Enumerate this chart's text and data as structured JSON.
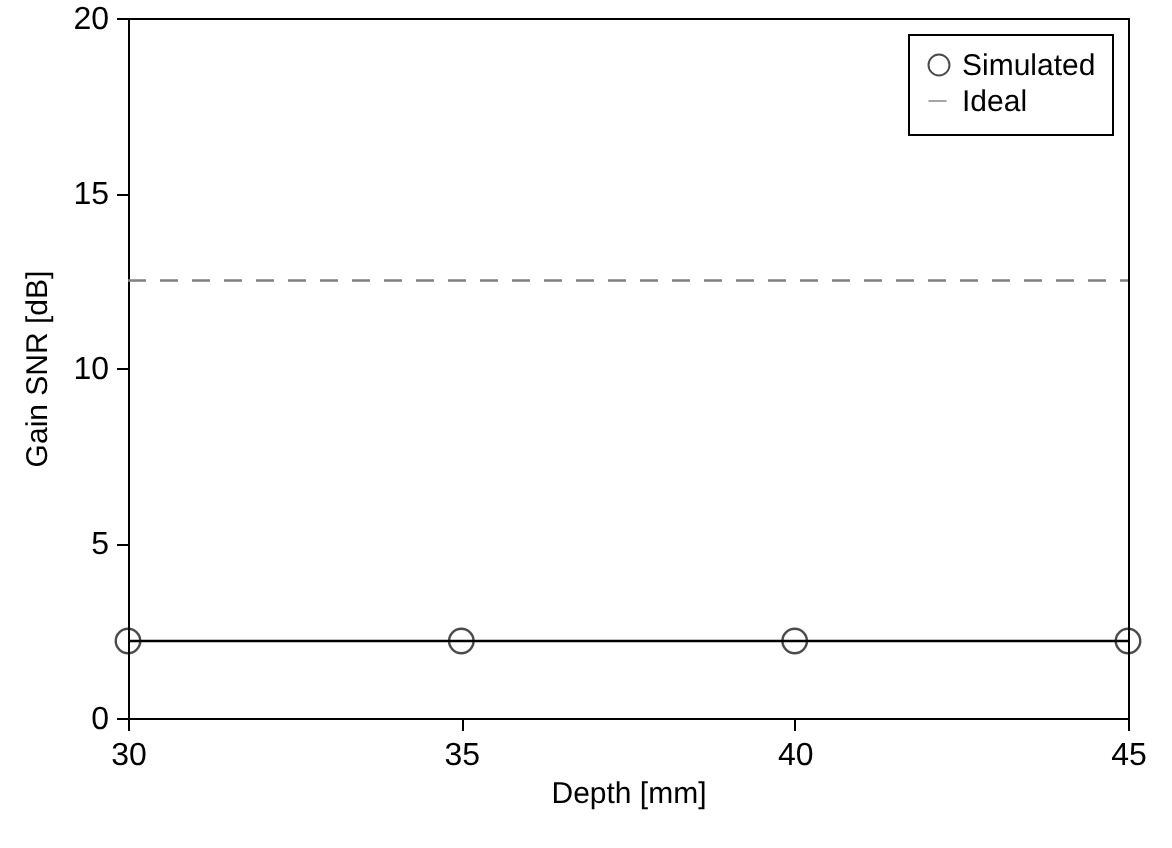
{
  "chart_data": {
    "type": "line",
    "xlabel": "Depth [mm]",
    "ylabel": "Gain SNR [dB]",
    "x": [
      30,
      35,
      40,
      45
    ],
    "series": [
      {
        "name": "Simulated",
        "color": "#000000",
        "values": [
          2.2,
          2.2,
          2.2,
          2.2
        ],
        "marker": "circle",
        "line_style": "solid"
      },
      {
        "name": "Ideal",
        "color": "#808080",
        "values": [
          12.5,
          12.5,
          12.5,
          12.5
        ],
        "marker": "none",
        "line_style": "dashed"
      }
    ],
    "xlim": [
      30,
      45
    ],
    "xticks": [
      30,
      35,
      40,
      45
    ],
    "ylim": [
      0,
      20
    ],
    "yticks": [
      0,
      5,
      10,
      15,
      20
    ],
    "grid": false,
    "legend": "top right"
  }
}
